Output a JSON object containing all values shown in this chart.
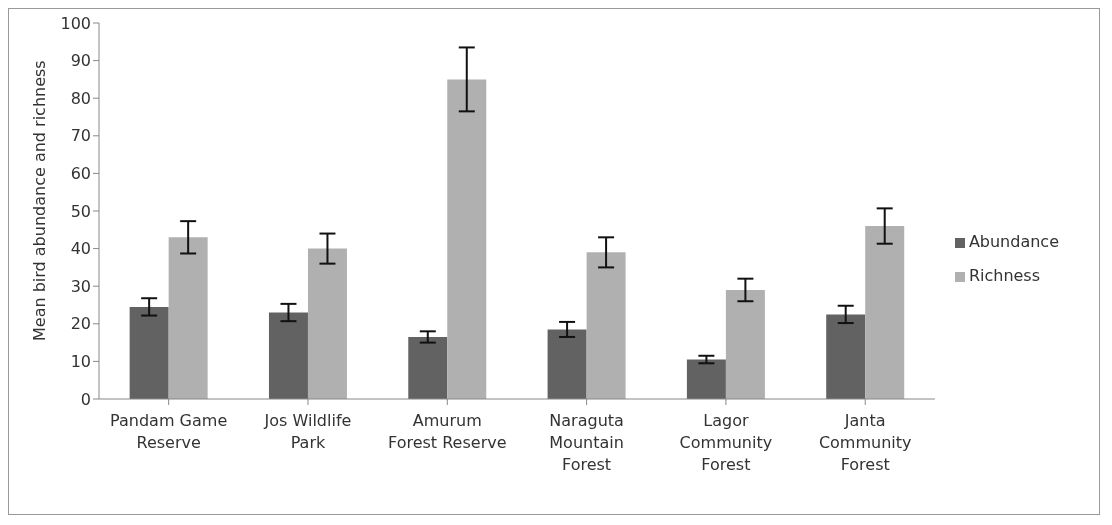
{
  "chart_data": {
    "type": "bar",
    "ylabel": "Mean bird abundance and richness",
    "categories": [
      "Pandam Game Reserve",
      "Jos Wildlife Park",
      "Amurum Forest Reserve",
      "Naraguta Mountain Forest",
      "Lagor Community Forest",
      "Janta Community Forest"
    ],
    "series": [
      {
        "name": "Abundance",
        "color": "#626262",
        "values": [
          24.5,
          23,
          16.5,
          18.5,
          10.5,
          22.5
        ],
        "errors": [
          2.3,
          2.3,
          1.5,
          2,
          1,
          2.3
        ]
      },
      {
        "name": "Richness",
        "color": "#b0b0b0",
        "values": [
          43,
          40,
          85,
          39,
          29,
          46
        ],
        "errors": [
          4.3,
          4,
          8.5,
          4,
          3,
          4.7
        ]
      }
    ],
    "ylim": [
      0,
      100
    ],
    "yticks": [
      0,
      10,
      20,
      30,
      40,
      50,
      60,
      70,
      80,
      90,
      100
    ],
    "grid": false,
    "legend": "right"
  }
}
